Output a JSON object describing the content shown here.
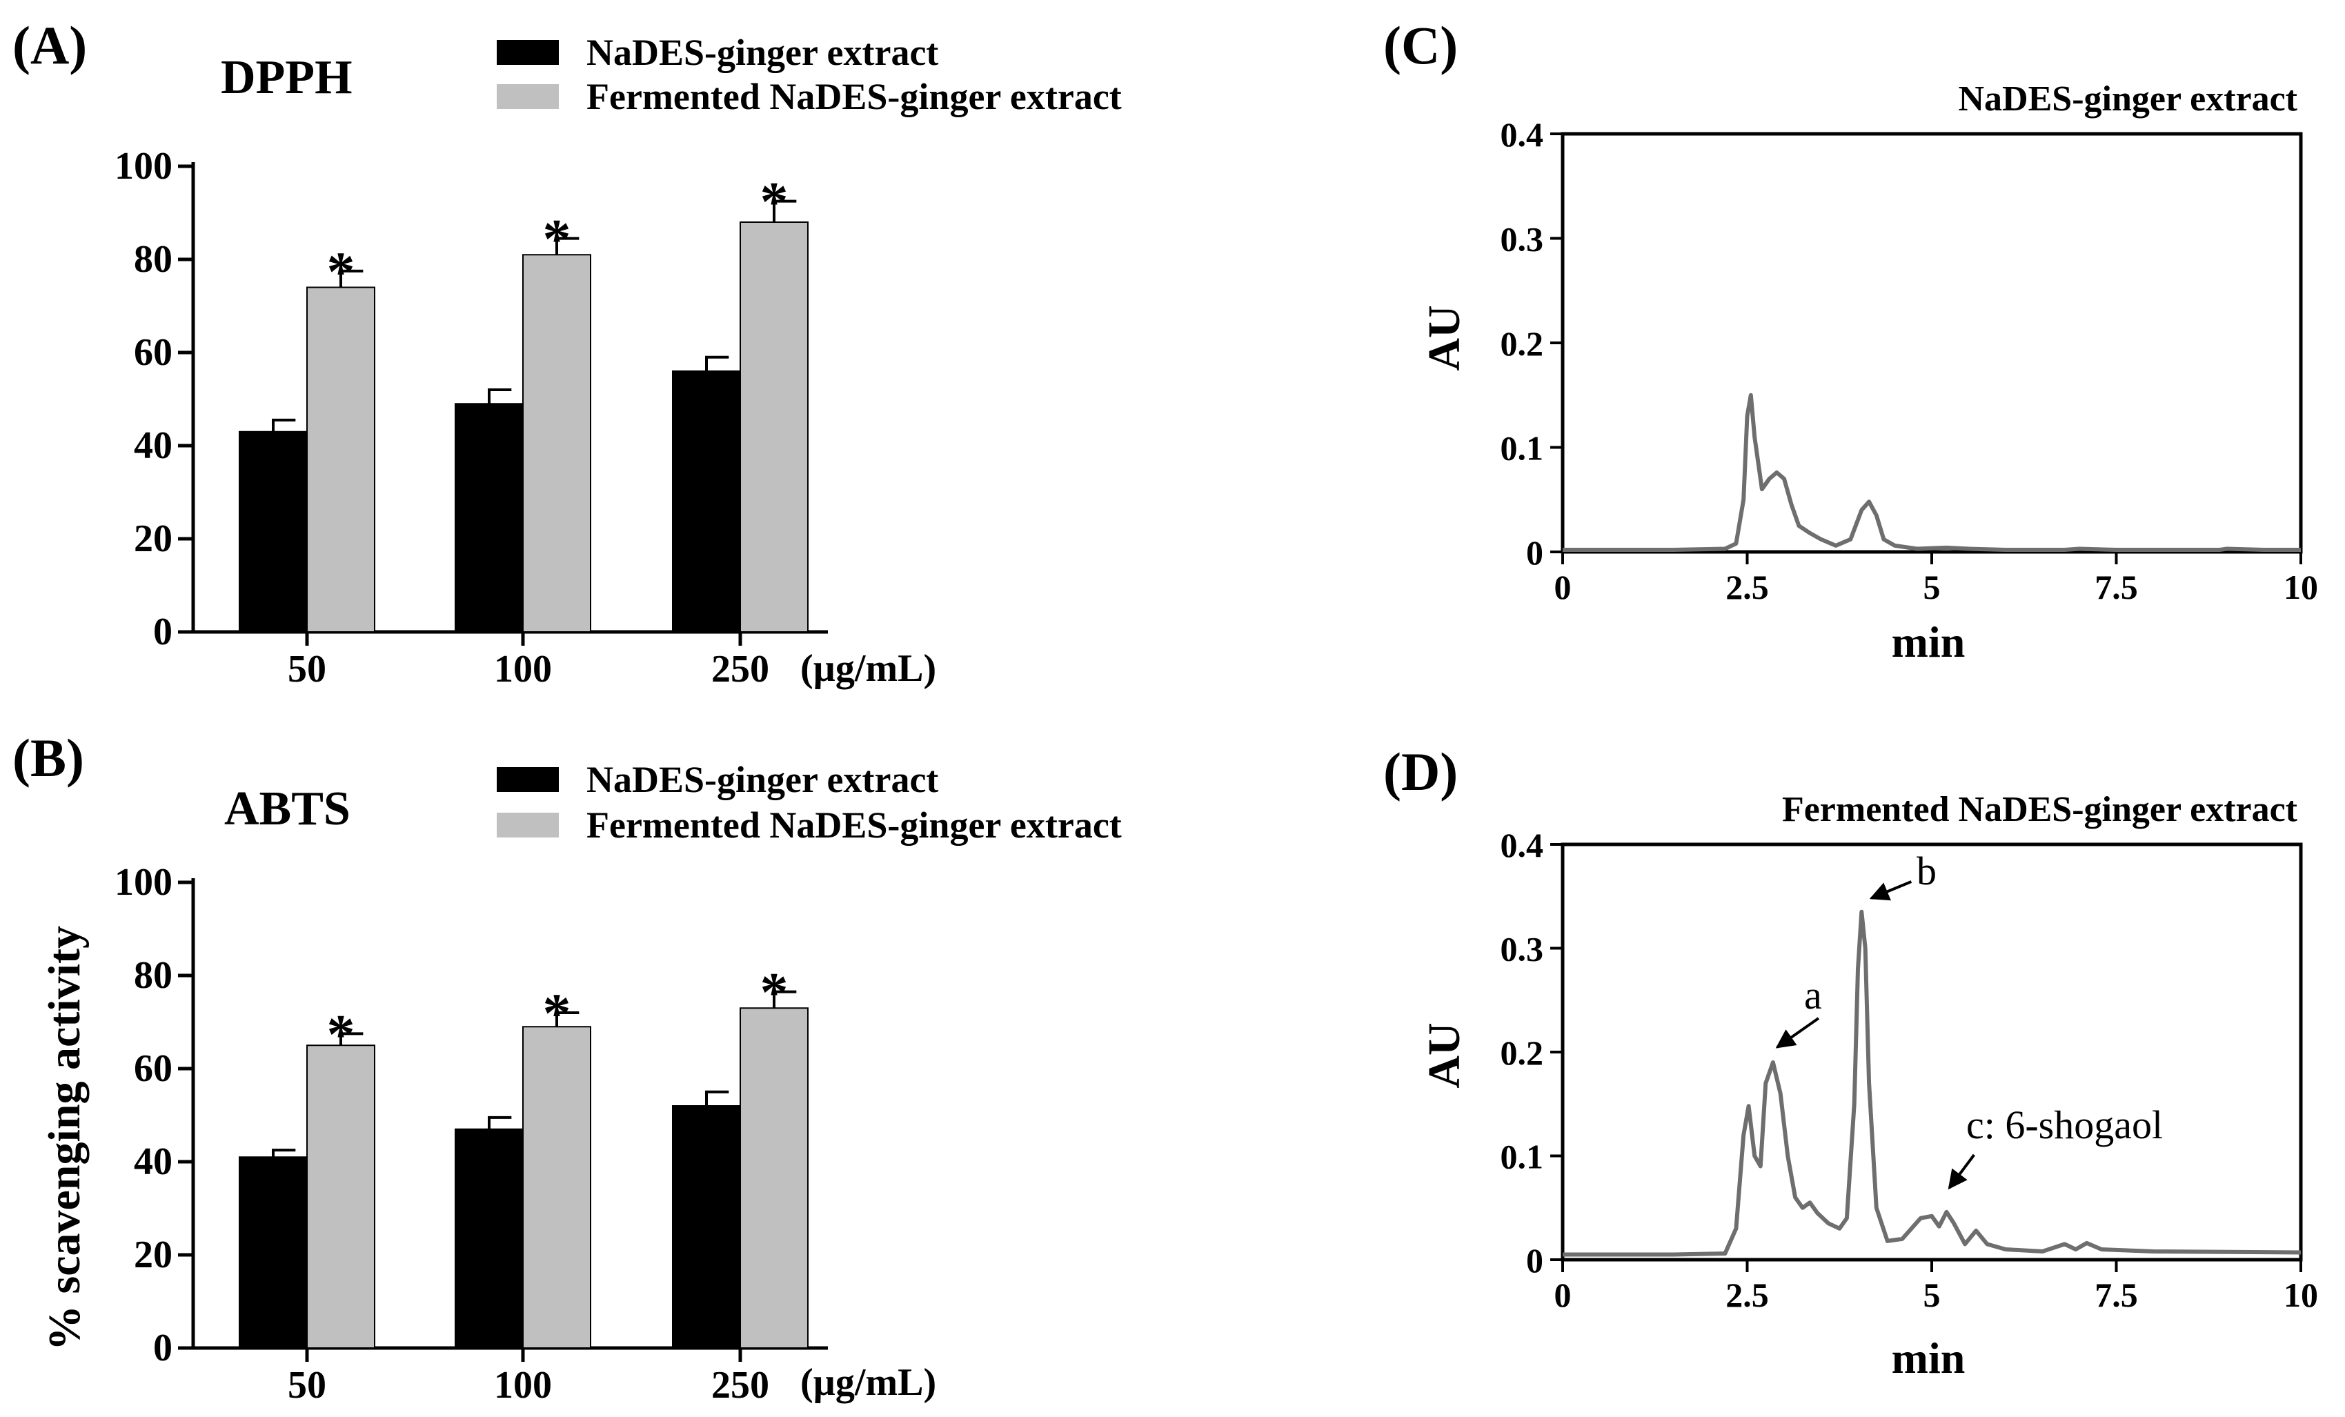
{
  "chart_data": [
    {
      "panel": "(A)",
      "type": "bar",
      "title": "DPPH",
      "categories": [
        "50",
        "100",
        "250"
      ],
      "unit_label": "(µg/mL)",
      "ylabel": "",
      "ylim": [
        0,
        100
      ],
      "yticks": [
        "0",
        "20",
        "40",
        "60",
        "80",
        "100"
      ],
      "legend": [
        "NaDES-ginger extract",
        "Fermented NaDES-ginger extract"
      ],
      "series": [
        {
          "name": "NaDES-ginger extract",
          "color": "#000000",
          "values": [
            43,
            49,
            56
          ],
          "errors": [
            2.5,
            3,
            3
          ]
        },
        {
          "name": "Fermented NaDES-ginger extract",
          "color": "#c0c0c0",
          "values": [
            74,
            81,
            88
          ],
          "errors": [
            3.5,
            3.5,
            4.5
          ]
        }
      ],
      "significance": [
        "*",
        "*",
        "*"
      ]
    },
    {
      "panel": "(B)",
      "type": "bar",
      "title": "ABTS",
      "categories": [
        "50",
        "100",
        "250"
      ],
      "unit_label": "(µg/mL)",
      "ylabel": "% scavenging activity",
      "ylim": [
        0,
        100
      ],
      "yticks": [
        "0",
        "20",
        "40",
        "60",
        "80",
        "100"
      ],
      "legend": [
        "NaDES-ginger extract",
        "Fermented NaDES-ginger extract"
      ],
      "series": [
        {
          "name": "NaDES-ginger extract",
          "color": "#000000",
          "values": [
            41,
            47,
            52
          ],
          "errors": [
            1.5,
            2.5,
            3
          ]
        },
        {
          "name": "Fermented NaDES-ginger extract",
          "color": "#c0c0c0",
          "values": [
            65,
            69,
            73
          ],
          "errors": [
            2.5,
            3,
            3.5
          ]
        }
      ],
      "significance": [
        "*",
        "*",
        "*"
      ]
    },
    {
      "panel": "(C)",
      "type": "line",
      "title": "NaDES-ginger extract",
      "xlabel": "min",
      "ylabel": "AU",
      "xlim": [
        0,
        10
      ],
      "ylim": [
        0,
        0.4
      ],
      "xticks": [
        "0",
        "2.5",
        "5",
        "7.5",
        "10"
      ],
      "yticks": [
        "0",
        "0.1",
        "0.2",
        "0.3",
        "0.4"
      ],
      "x": [
        0,
        1.5,
        2.2,
        2.35,
        2.45,
        2.5,
        2.55,
        2.6,
        2.7,
        2.8,
        2.9,
        3.0,
        3.1,
        3.2,
        3.35,
        3.5,
        3.7,
        3.9,
        4.05,
        4.15,
        4.25,
        4.35,
        4.5,
        4.8,
        5.2,
        5.5,
        6,
        6.8,
        7.0,
        7.5,
        8,
        8.9,
        9.0,
        9.5,
        10
      ],
      "y": [
        0.002,
        0.002,
        0.003,
        0.008,
        0.05,
        0.13,
        0.15,
        0.11,
        0.06,
        0.07,
        0.076,
        0.07,
        0.045,
        0.025,
        0.018,
        0.012,
        0.006,
        0.012,
        0.04,
        0.048,
        0.035,
        0.012,
        0.006,
        0.003,
        0.004,
        0.003,
        0.002,
        0.002,
        0.003,
        0.002,
        0.002,
        0.002,
        0.003,
        0.002,
        0.002
      ]
    },
    {
      "panel": "(D)",
      "type": "line",
      "title": "Fermented NaDES-ginger extract",
      "xlabel": "min",
      "ylabel": "AU",
      "xlim": [
        0,
        10
      ],
      "ylim": [
        0,
        0.4
      ],
      "xticks": [
        "0",
        "2.5",
        "5",
        "7.5",
        "10"
      ],
      "yticks": [
        "0",
        "0.1",
        "0.2",
        "0.3",
        "0.4"
      ],
      "x": [
        0,
        1.5,
        2.2,
        2.35,
        2.45,
        2.52,
        2.6,
        2.68,
        2.75,
        2.85,
        2.95,
        3.05,
        3.15,
        3.25,
        3.35,
        3.45,
        3.6,
        3.75,
        3.85,
        3.95,
        4.0,
        4.05,
        4.1,
        4.15,
        4.25,
        4.4,
        4.6,
        4.85,
        5.0,
        5.1,
        5.2,
        5.3,
        5.45,
        5.6,
        5.75,
        6.0,
        6.5,
        6.8,
        6.95,
        7.1,
        7.3,
        8.0,
        10
      ],
      "y": [
        0.005,
        0.005,
        0.006,
        0.03,
        0.12,
        0.148,
        0.1,
        0.09,
        0.17,
        0.19,
        0.16,
        0.1,
        0.06,
        0.05,
        0.055,
        0.045,
        0.035,
        0.03,
        0.04,
        0.15,
        0.28,
        0.335,
        0.3,
        0.17,
        0.05,
        0.018,
        0.02,
        0.04,
        0.042,
        0.032,
        0.046,
        0.035,
        0.015,
        0.028,
        0.015,
        0.01,
        0.008,
        0.015,
        0.01,
        0.016,
        0.01,
        0.008,
        0.007
      ],
      "annotations": [
        {
          "label": "a",
          "x": 2.85
        },
        {
          "label": "b",
          "x": 4.05
        },
        {
          "label": "c: 6-shogaol",
          "x": 5.2
        }
      ]
    }
  ]
}
